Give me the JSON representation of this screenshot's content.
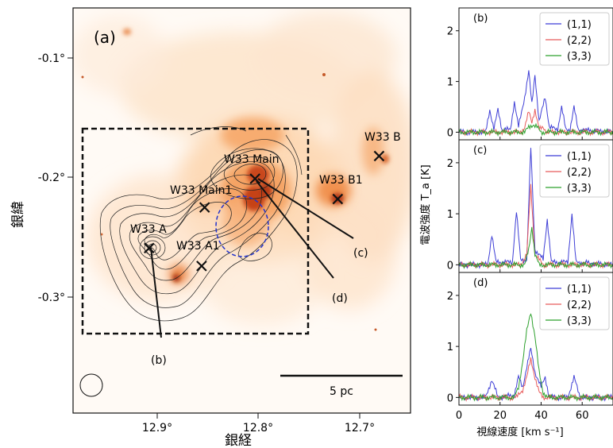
{
  "map": {
    "panel_label": "(a)",
    "xlabel": "銀経",
    "ylabel": "銀緯",
    "x_ticks": [
      "12.9°",
      "12.8°",
      "12.7°"
    ],
    "y_ticks": [
      "-0.1°",
      "-0.2°",
      "-0.3°"
    ],
    "scale_bar": "5 pc",
    "sources": [
      {
        "name": "W33 A",
        "l": 12.908,
        "b": -0.259
      },
      {
        "name": "W33 A1",
        "l": 12.856,
        "b": -0.274
      },
      {
        "name": "W33 Main1",
        "l": 12.853,
        "b": -0.225
      },
      {
        "name": "W33 Main",
        "l": 12.803,
        "b": -0.201
      },
      {
        "name": "W33 B1",
        "l": 12.721,
        "b": -0.218
      },
      {
        "name": "W33 B",
        "l": 12.68,
        "b": -0.182
      }
    ],
    "pointers": [
      "(b)",
      "(c)",
      "(d)"
    ]
  },
  "chart_data": [
    {
      "type": "line",
      "panel": "(b)",
      "xlabel": "視線速度 [km s⁻¹]",
      "ylabel": "電波強度 T_a [K]",
      "xlim": [
        0,
        75
      ],
      "ylim": [
        -0.15,
        2.45
      ],
      "yticks": [
        0,
        1,
        2
      ],
      "legend": "top-right",
      "series": [
        {
          "name": "(1,1)",
          "color": "#3f3fd6",
          "points": [
            [
              0,
              0
            ],
            [
              13,
              0
            ],
            [
              15,
              0.45
            ],
            [
              17,
              0.05
            ],
            [
              19,
              0.45
            ],
            [
              21,
              0.05
            ],
            [
              25,
              0.05
            ],
            [
              27,
              0.6
            ],
            [
              29,
              0.1
            ],
            [
              32,
              0.7
            ],
            [
              34,
              1.2
            ],
            [
              35.5,
              0.55
            ],
            [
              37,
              1.15
            ],
            [
              39,
              0.2
            ],
            [
              42,
              0.7
            ],
            [
              44,
              0.1
            ],
            [
              48,
              0.05
            ],
            [
              50,
              0.5
            ],
            [
              52,
              0.05
            ],
            [
              54,
              0.05
            ],
            [
              56,
              0.5
            ],
            [
              58,
              0.05
            ],
            [
              75,
              0
            ]
          ]
        },
        {
          "name": "(2,2)",
          "color": "#e85a5a",
          "points": [
            [
              0,
              0
            ],
            [
              30,
              0
            ],
            [
              32,
              0.1
            ],
            [
              34,
              0.4
            ],
            [
              35.5,
              0.2
            ],
            [
              37,
              0.45
            ],
            [
              39,
              0.05
            ],
            [
              41,
              0.1
            ],
            [
              43,
              0
            ],
            [
              75,
              0
            ]
          ]
        },
        {
          "name": "(3,3)",
          "color": "#2ca02c",
          "points": [
            [
              0,
              0
            ],
            [
              32,
              0
            ],
            [
              34,
              0.1
            ],
            [
              36,
              0.15
            ],
            [
              38,
              0.1
            ],
            [
              40,
              0
            ],
            [
              75,
              0
            ]
          ]
        }
      ]
    },
    {
      "type": "line",
      "panel": "(c)",
      "xlabel": "視線速度 [km s⁻¹]",
      "ylabel": "電波強度 T_a [K]",
      "xlim": [
        0,
        75
      ],
      "ylim": [
        -0.15,
        2.45
      ],
      "yticks": [
        0,
        1,
        2
      ],
      "legend": "top-right",
      "series": [
        {
          "name": "(1,1)",
          "color": "#3f3fd6",
          "points": [
            [
              0,
              0
            ],
            [
              14,
              0
            ],
            [
              16,
              0.6
            ],
            [
              18,
              0.05
            ],
            [
              26,
              0.05
            ],
            [
              28,
              1.05
            ],
            [
              30,
              0.1
            ],
            [
              33,
              0.1
            ],
            [
              35,
              2.3
            ],
            [
              37,
              0.3
            ],
            [
              41,
              0.1
            ],
            [
              43,
              0.9
            ],
            [
              45,
              0.05
            ],
            [
              53,
              0.05
            ],
            [
              55,
              1.0
            ],
            [
              57,
              0.05
            ],
            [
              75,
              0
            ]
          ]
        },
        {
          "name": "(2,2)",
          "color": "#e85a5a",
          "points": [
            [
              0,
              0
            ],
            [
              30,
              0
            ],
            [
              33,
              0.2
            ],
            [
              35,
              1.55
            ],
            [
              37,
              0.2
            ],
            [
              39,
              0.1
            ],
            [
              41,
              0
            ],
            [
              75,
              0
            ]
          ]
        },
        {
          "name": "(3,3)",
          "color": "#2ca02c",
          "points": [
            [
              0,
              0
            ],
            [
              32,
              0
            ],
            [
              34,
              0.3
            ],
            [
              35.5,
              0.75
            ],
            [
              37,
              0.2
            ],
            [
              39,
              0
            ],
            [
              75,
              0
            ]
          ]
        }
      ]
    },
    {
      "type": "line",
      "panel": "(d)",
      "xlabel": "視線速度 [km s⁻¹]",
      "ylabel": "電波強度 T_a [K]",
      "xlim": [
        0,
        75
      ],
      "ylim": [
        -0.15,
        2.45
      ],
      "yticks": [
        0,
        1,
        2
      ],
      "xticks": [
        0,
        20,
        40,
        60
      ],
      "legend": "top-right",
      "series": [
        {
          "name": "(1,1)",
          "color": "#3f3fd6",
          "points": [
            [
              0,
              0
            ],
            [
              13,
              0
            ],
            [
              16,
              0.35
            ],
            [
              19,
              0
            ],
            [
              27,
              0.05
            ],
            [
              29,
              0.4
            ],
            [
              31,
              0.2
            ],
            [
              33,
              0.6
            ],
            [
              35,
              0.95
            ],
            [
              37,
              0.5
            ],
            [
              40,
              0.2
            ],
            [
              42,
              0.4
            ],
            [
              44,
              0
            ],
            [
              53,
              0
            ],
            [
              56,
              0.4
            ],
            [
              59,
              0
            ],
            [
              75,
              0
            ]
          ]
        },
        {
          "name": "(2,2)",
          "color": "#e85a5a",
          "points": [
            [
              0,
              0
            ],
            [
              28,
              0
            ],
            [
              31,
              0.15
            ],
            [
              33,
              0.4
            ],
            [
              35,
              0.75
            ],
            [
              37,
              0.4
            ],
            [
              39,
              0.1
            ],
            [
              41,
              0
            ],
            [
              75,
              0
            ]
          ]
        },
        {
          "name": "(3,3)",
          "color": "#2ca02c",
          "points": [
            [
              0,
              0
            ],
            [
              27,
              0
            ],
            [
              29,
              0.2
            ],
            [
              31,
              0.7
            ],
            [
              33,
              1.3
            ],
            [
              35,
              1.68
            ],
            [
              37,
              1.2
            ],
            [
              39,
              0.5
            ],
            [
              41,
              0.1
            ],
            [
              43,
              0
            ],
            [
              75,
              0
            ]
          ]
        }
      ]
    }
  ]
}
